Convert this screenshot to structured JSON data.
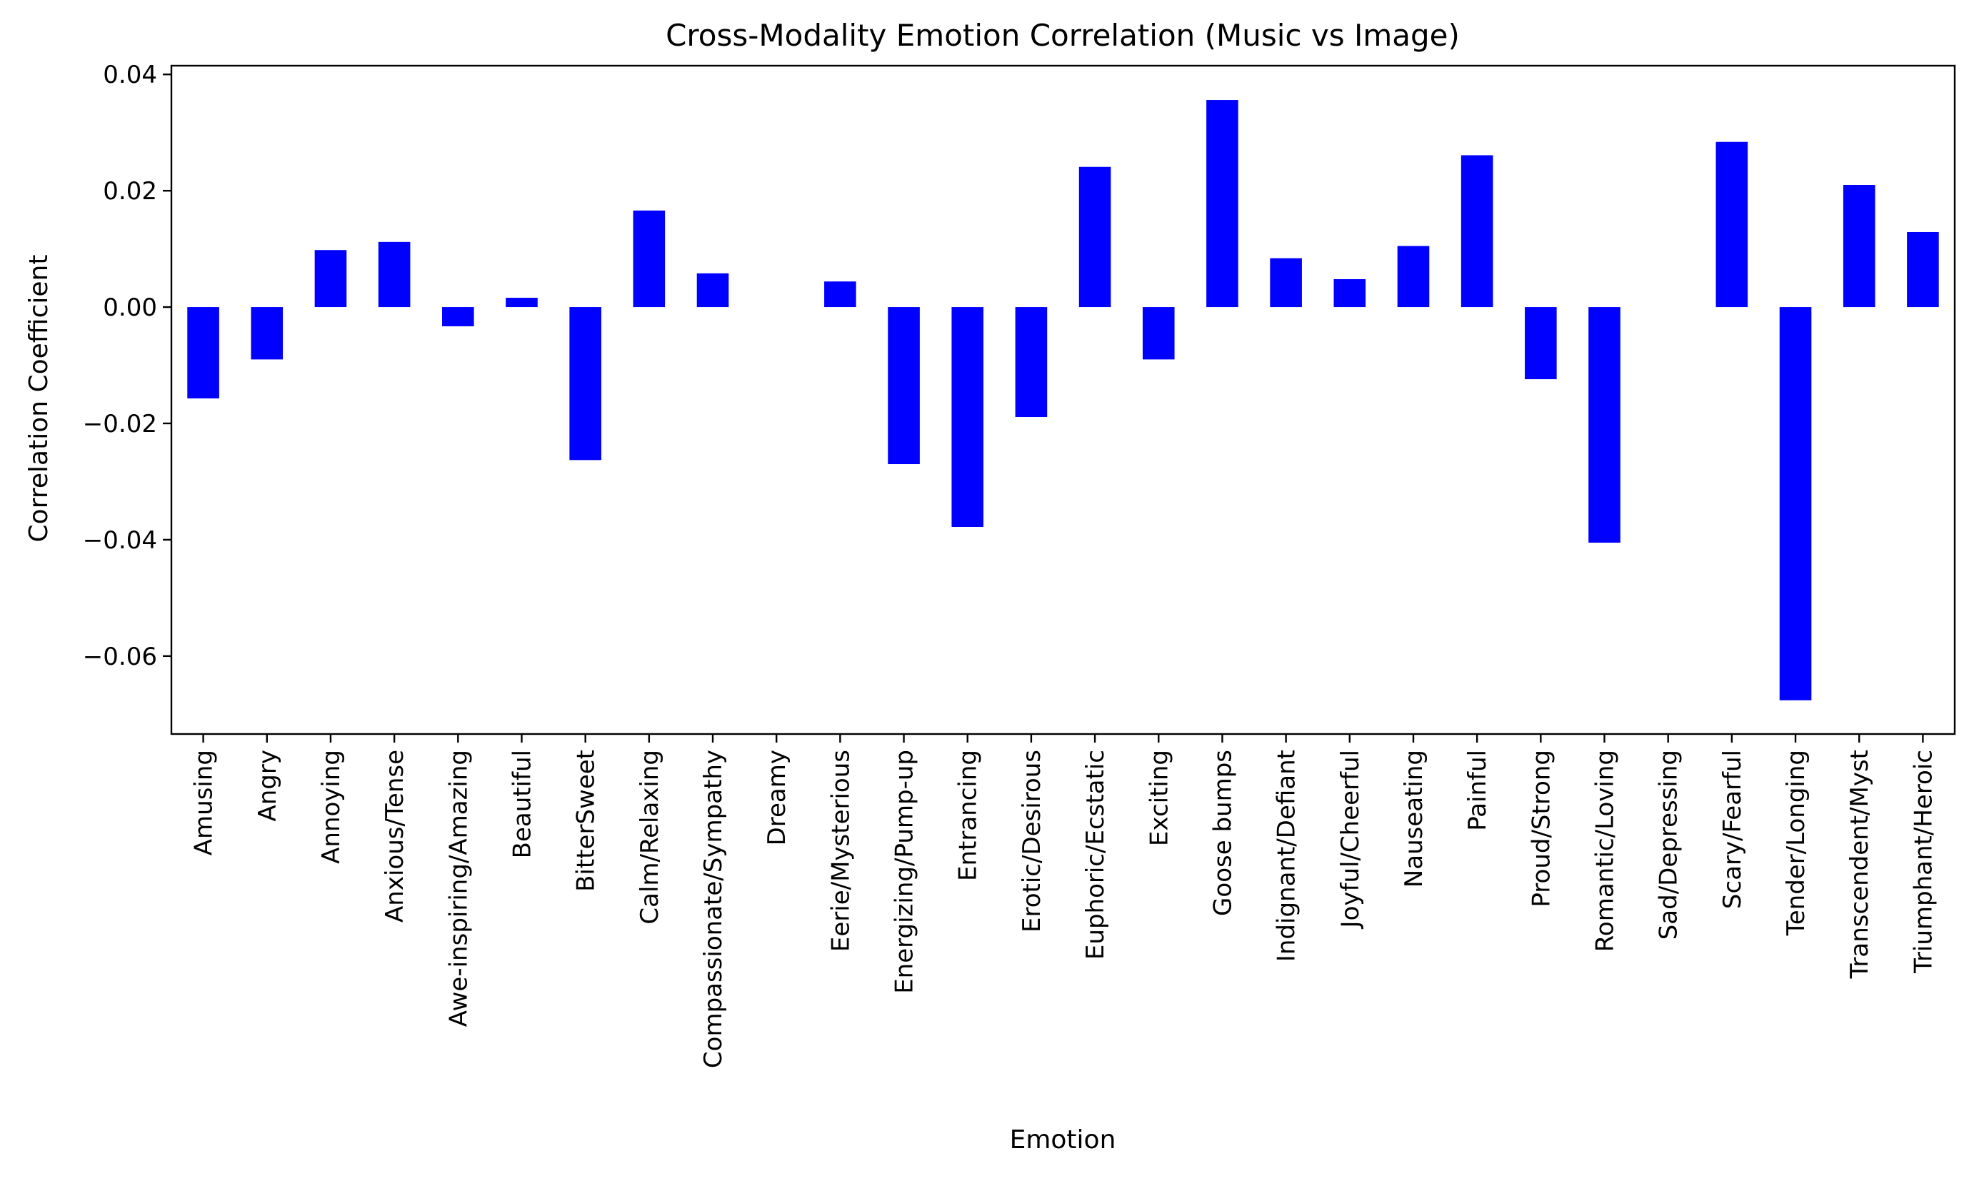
{
  "chart_data": {
    "type": "bar",
    "title": "Cross-Modality Emotion Correlation (Music vs Image)",
    "xlabel": "Emotion",
    "ylabel": "Correlation Coefficient",
    "ylim": [
      -0.0734,
      0.0415
    ],
    "yticks": [
      -0.06,
      -0.04,
      -0.02,
      0.0,
      0.02,
      0.04
    ],
    "ytick_labels": [
      "−0.06",
      "−0.04",
      "−0.02",
      "0.00",
      "0.02",
      "0.04"
    ],
    "grid": false,
    "bar_color": "#0000ff",
    "categories": [
      "Amusing",
      "Angry",
      "Annoying",
      "Anxious/Tense",
      "Awe-inspiring/Amazing",
      "Beautiful",
      "BitterSweet",
      "Calm/Relaxing",
      "Compassionate/Sympathy",
      "Dreamy",
      "Eerie/Mysterious",
      "Energizing/Pump-up",
      "Entrancing",
      "Erotic/Desirous",
      "Euphoric/Ecstatic",
      "Exciting",
      "Goose bumps",
      "Indignant/Defiant",
      "Joyful/Cheerful",
      "Nauseating",
      "Painful",
      "Proud/Strong",
      "Romantic/Loving",
      "Sad/Depressing",
      "Scary/Fearful",
      "Tender/Longing",
      "Transcendent/Myst",
      "Triumphant/Heroic"
    ],
    "values": [
      -0.0157,
      -0.009,
      0.0098,
      0.0112,
      -0.0033,
      0.0016,
      -0.0263,
      0.0166,
      0.0058,
      0.0,
      0.0044,
      -0.027,
      -0.0378,
      -0.0189,
      0.0241,
      -0.009,
      0.0356,
      0.0084,
      0.0048,
      0.0105,
      0.0261,
      -0.0124,
      -0.0405,
      0.0,
      0.0284,
      -0.0676,
      0.021,
      0.0129
    ]
  }
}
